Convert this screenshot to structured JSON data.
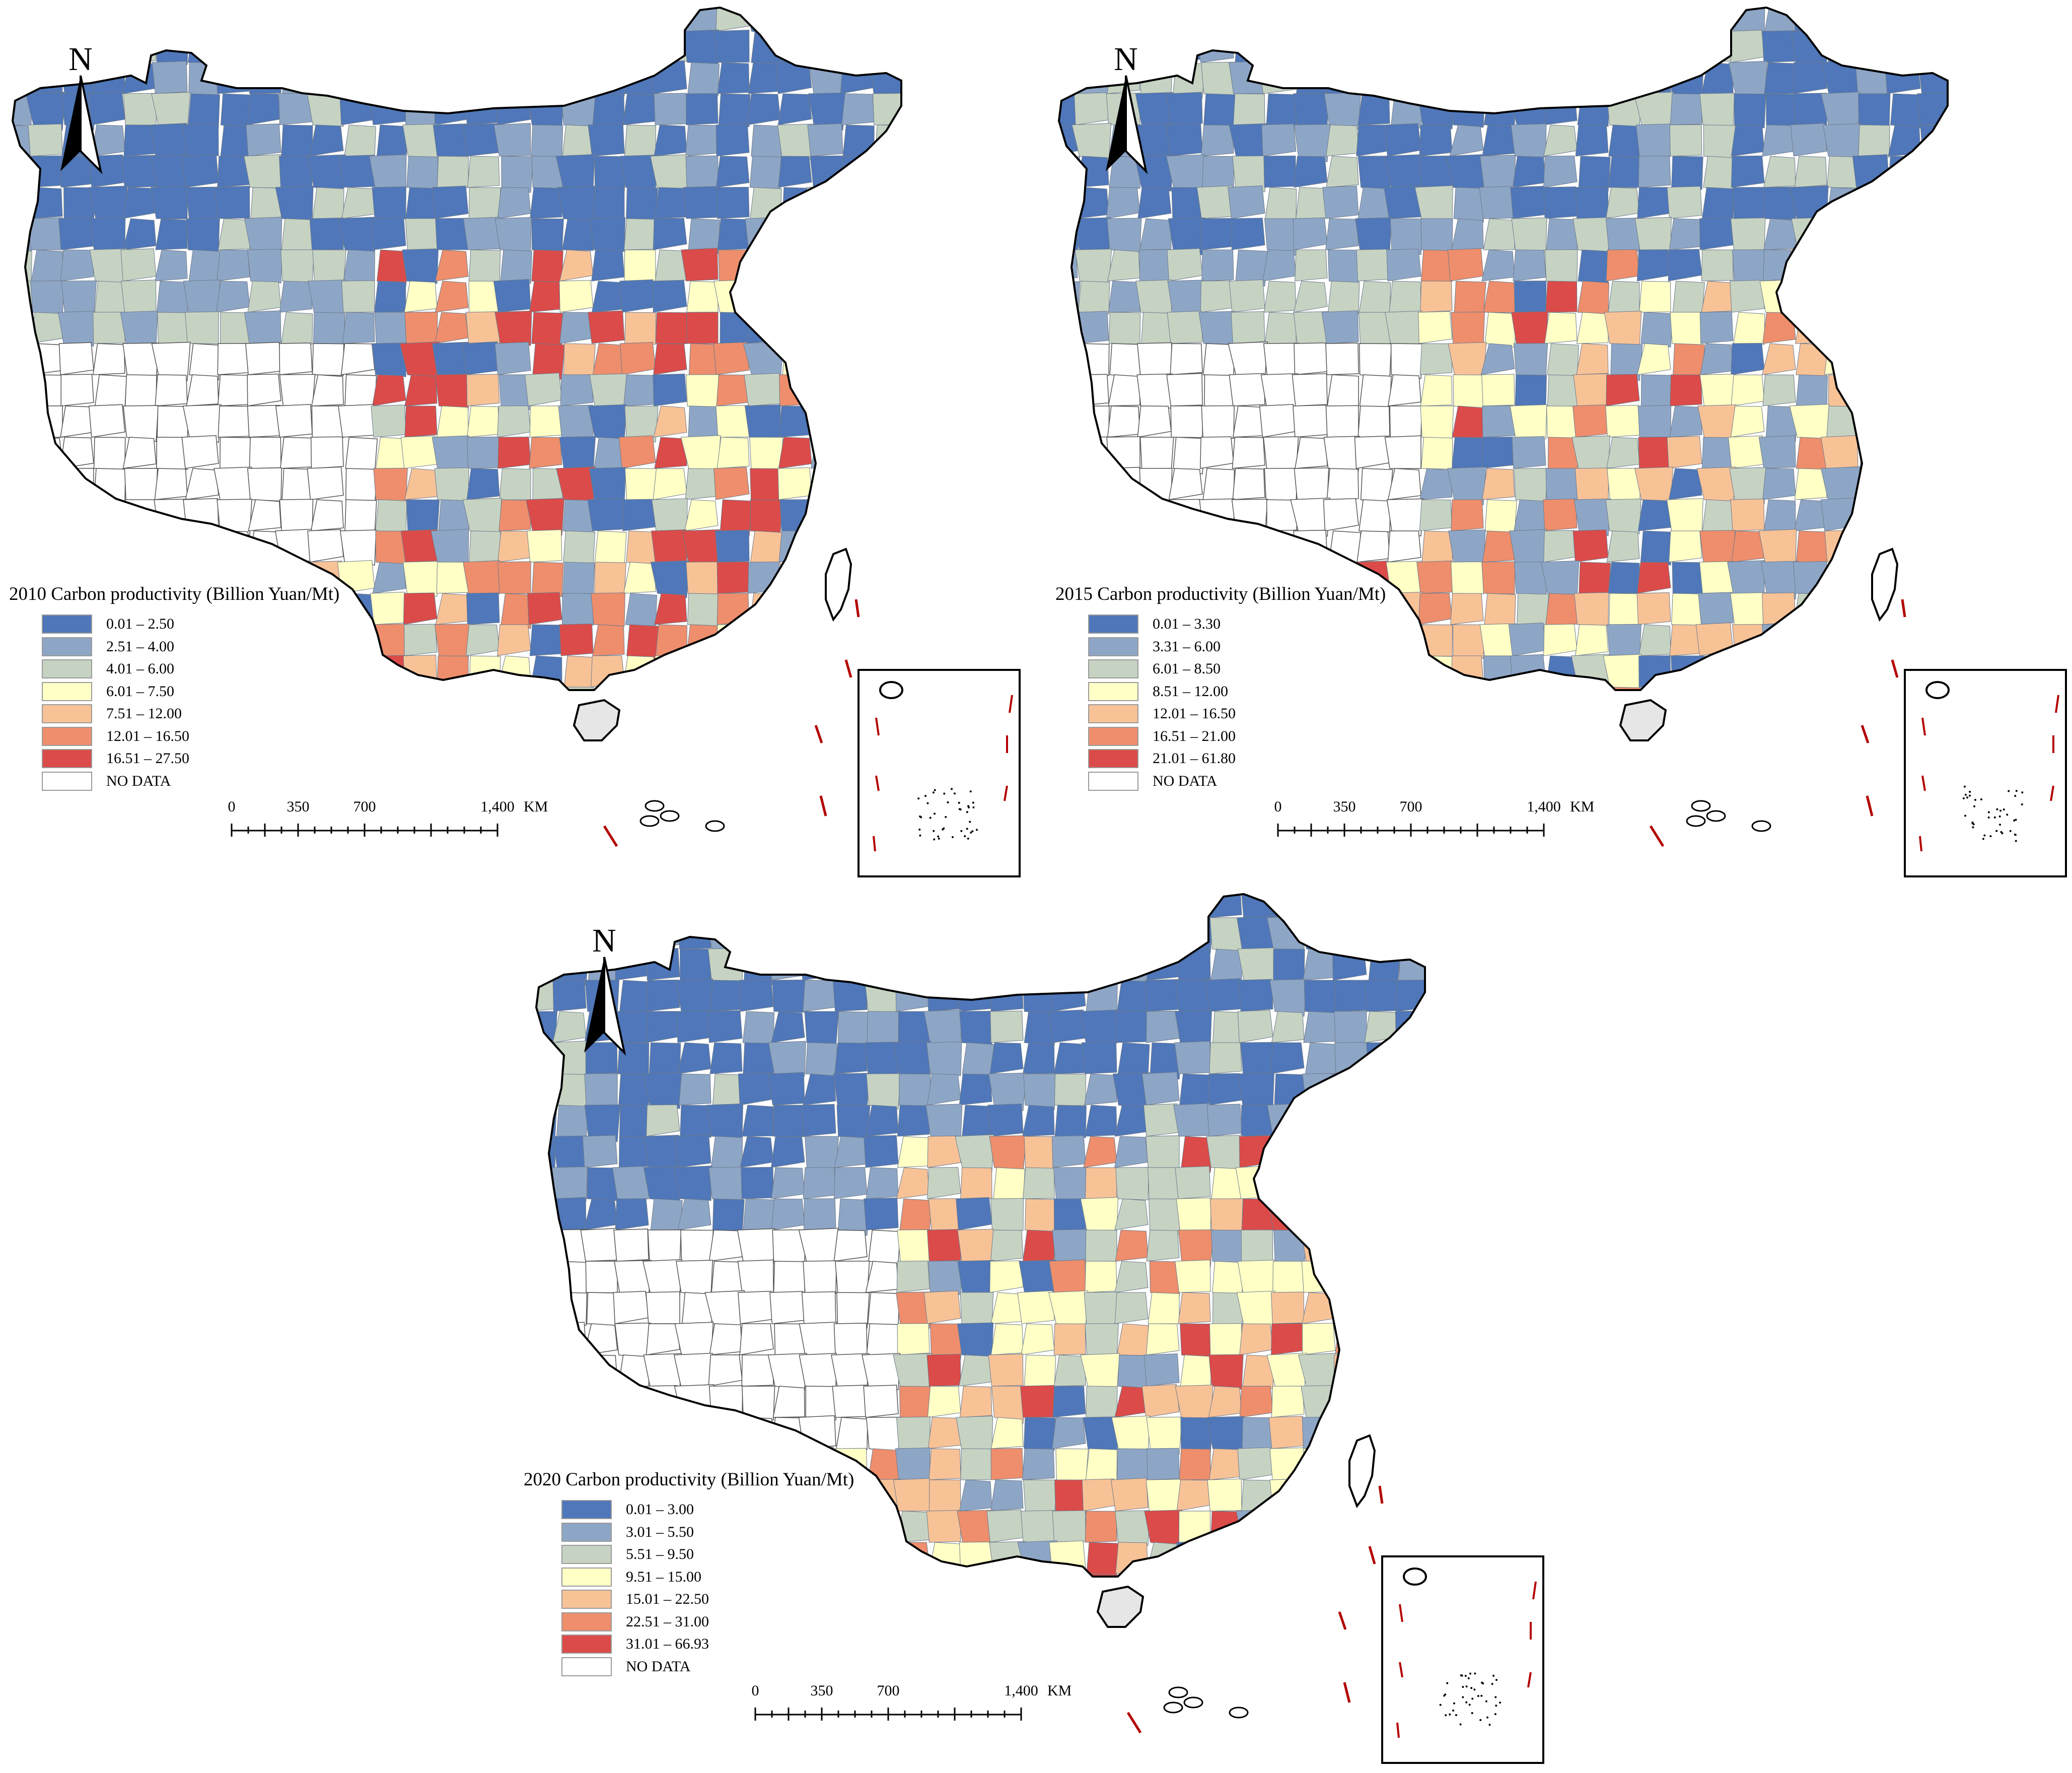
{
  "north_arrow_letter": "N",
  "scale": {
    "ticks": [
      "0",
      "350",
      "700",
      "1,400"
    ],
    "unit": "KM"
  },
  "classes": {
    "colors": [
      "#4f77b9",
      "#8ea6c6",
      "#c6d3c3",
      "#ffffc6",
      "#f8c297",
      "#ee8e6c",
      "#db4b49"
    ],
    "nodata_color": "#ffffff"
  },
  "panels": [
    {
      "year_title": "2010  Carbon productivity (Billion Yuan/Mt)",
      "legend": [
        "0.01 – 2.50",
        "2.51 – 4.00",
        "4.01 – 6.00",
        "6.01 – 7.50",
        "7.51 – 12.00",
        "12.01 – 16.50",
        "16.51 – 27.50"
      ],
      "nodata_label": "NO  DATA"
    },
    {
      "year_title": "2015  Carbon productivity (Billion Yuan/Mt)",
      "legend": [
        "0.01 – 3.30",
        "3.31 – 6.00",
        "6.01 – 8.50",
        "8.51 – 12.00",
        "12.01 – 16.50",
        "16.51 – 21.00",
        "21.01 – 61.80"
      ],
      "nodata_label": "NO  DATA"
    },
    {
      "year_title": "2020 Carbon productivity (Billion Yuan/Mt)",
      "legend": [
        "0.01 – 3.00",
        "3.01 – 5.50",
        "5.51 – 9.50",
        "9.51 – 15.00",
        "15.01 – 22.50",
        "22.51 – 31.00",
        "31.01 – 66.93"
      ],
      "nodata_label": "NO  DATA"
    }
  ]
}
